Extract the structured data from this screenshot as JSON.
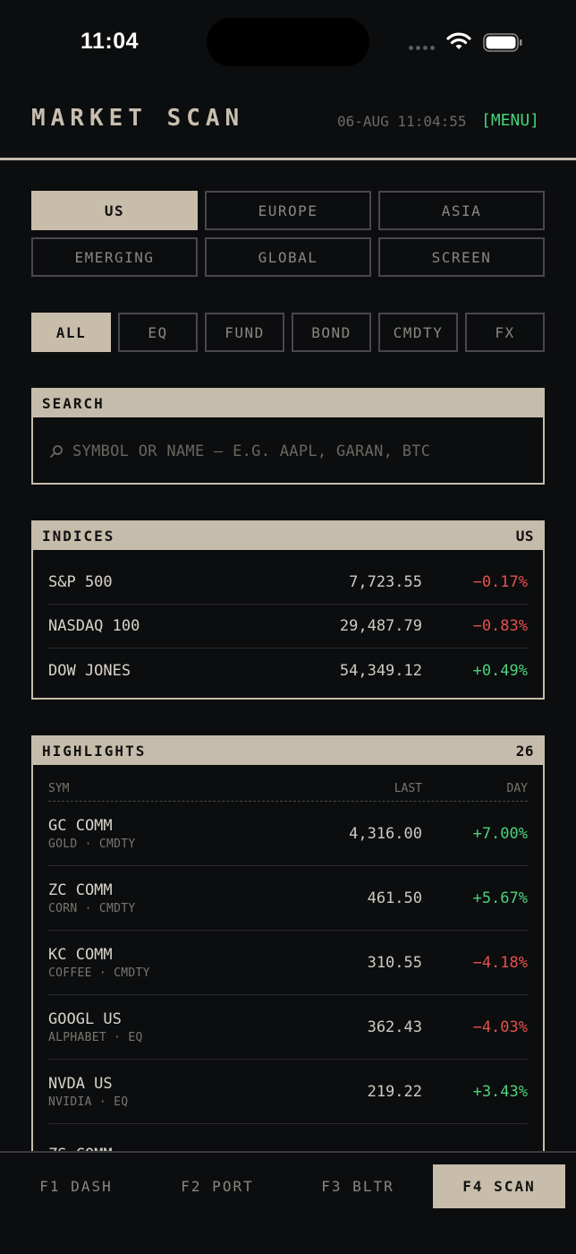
{
  "status": {
    "time": "11:04"
  },
  "header": {
    "title": "MARKET SCAN",
    "timestamp": "06-AUG 11:04:55",
    "menu_label": "[MENU]"
  },
  "regions": [
    "US",
    "EUROPE",
    "ASIA",
    "EMERGING",
    "GLOBAL",
    "SCREEN"
  ],
  "active_region": "US",
  "asset_types": [
    "ALL",
    "EQ",
    "FUND",
    "BOND",
    "CMDTY",
    "FX"
  ],
  "active_asset_type": "ALL",
  "search": {
    "label": "SEARCH",
    "placeholder": "SYMBOL OR NAME — E.G. AAPL, GARAN, BTC"
  },
  "indices": {
    "label": "INDICES",
    "region": "US",
    "rows": [
      {
        "name": "S&P 500",
        "value": "7,723.55",
        "change": "−0.17%",
        "direction": "down"
      },
      {
        "name": "NASDAQ 100",
        "value": "29,487.79",
        "change": "−0.83%",
        "direction": "down"
      },
      {
        "name": "DOW JONES",
        "value": "54,349.12",
        "change": "+0.49%",
        "direction": "up"
      }
    ]
  },
  "highlights": {
    "label": "HIGHLIGHTS",
    "count": "26",
    "columns": {
      "sym": "SYM",
      "last": "LAST",
      "day": "DAY"
    },
    "rows": [
      {
        "symbol": "GC COMM",
        "sub": "GOLD · CMDTY",
        "last": "4,316.00",
        "day": "+7.00%",
        "direction": "up"
      },
      {
        "symbol": "ZC COMM",
        "sub": "CORN · CMDTY",
        "last": "461.50",
        "day": "+5.67%",
        "direction": "up"
      },
      {
        "symbol": "KC COMM",
        "sub": "COFFEE · CMDTY",
        "last": "310.55",
        "day": "−4.18%",
        "direction": "down"
      },
      {
        "symbol": "GOOGL US",
        "sub": "ALPHABET · EQ",
        "last": "362.43",
        "day": "−4.03%",
        "direction": "down"
      },
      {
        "symbol": "NVDA US",
        "sub": "NVIDIA · EQ",
        "last": "219.22",
        "day": "+3.43%",
        "direction": "up"
      },
      {
        "symbol": "ZS COMM",
        "sub": "",
        "last": "",
        "day": "",
        "direction": "up"
      }
    ]
  },
  "nav": [
    {
      "label": "F1 DASH",
      "active": false
    },
    {
      "label": "F2 PORT",
      "active": false
    },
    {
      "label": "F3 BLTR",
      "active": false
    },
    {
      "label": "F4 SCAN",
      "active": true
    }
  ],
  "colors": {
    "accent": "#c8bdaa",
    "up": "#4bd27c",
    "down": "#e2534e",
    "menu": "#46d37a",
    "background": "#0c0d0e"
  },
  "icons": {
    "search": "magnifier-icon",
    "wifi": "wifi-icon",
    "battery": "battery-icon",
    "signal": "signal-dots-icon"
  }
}
